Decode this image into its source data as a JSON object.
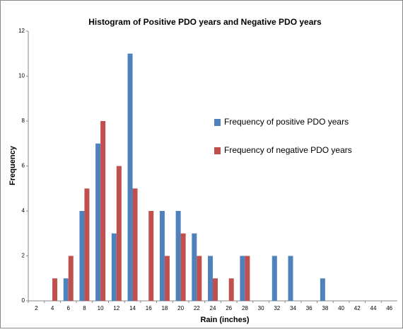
{
  "chart_data": {
    "type": "bar",
    "title": "Histogram of Positive PDO years and Negative PDO years",
    "x_label": "Rain (inches)",
    "y_label": "Frequency",
    "categories": [
      "2",
      "4",
      "6",
      "8",
      "10",
      "12",
      "14",
      "16",
      "18",
      "20",
      "22",
      "24",
      "26",
      "28",
      "30",
      "32",
      "34",
      "36",
      "38",
      "40",
      "42",
      "44",
      "46"
    ],
    "series": [
      {
        "name": "Frequency of positive PDO years",
        "color": "#4f81bd",
        "values": [
          0,
          0,
          1,
          4,
          7,
          3,
          11,
          0,
          4,
          4,
          3,
          2,
          0,
          2,
          0,
          2,
          2,
          0,
          1,
          0,
          0,
          0,
          0
        ]
      },
      {
        "name": "Frequency of negative PDO years",
        "color": "#c0504d",
        "values": [
          0,
          1,
          2,
          5,
          8,
          6,
          5,
          4,
          2,
          3,
          2,
          1,
          1,
          2,
          0,
          0,
          0,
          0,
          0,
          0,
          0,
          0,
          0
        ]
      }
    ],
    "ylim": [
      0,
      12
    ],
    "yticks": [
      0,
      2,
      4,
      6,
      8,
      10,
      12
    ],
    "legend": "right"
  }
}
